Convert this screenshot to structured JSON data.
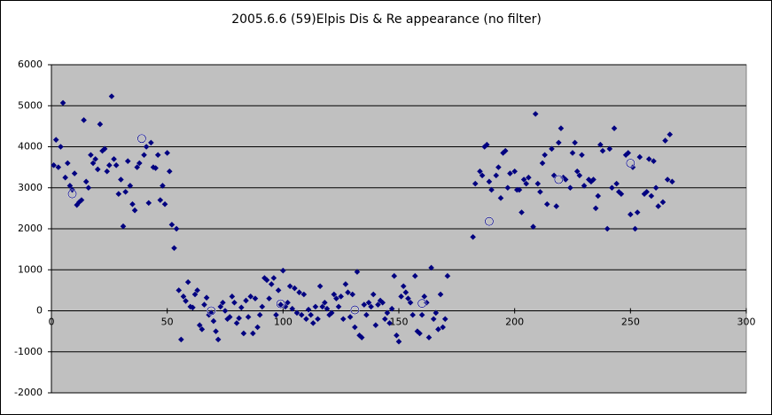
{
  "chart_data": {
    "type": "scatter",
    "title": "2005.6.6 (59)Elpis Dis & Re appearance (no filter)",
    "xlim": [
      0,
      300
    ],
    "xticks": [
      0,
      50,
      100,
      150,
      200,
      250,
      300
    ],
    "ylim": [
      -2000,
      6000
    ],
    "yticks": [
      -2000,
      -1000,
      0,
      1000,
      2000,
      3000,
      4000,
      5000,
      6000
    ],
    "grid": true,
    "series": [
      {
        "marker": "diamond",
        "color": "#000080",
        "x": [
          1,
          2,
          3,
          4,
          5,
          6,
          7,
          8,
          9,
          10,
          11,
          12,
          13,
          14,
          15,
          16,
          17,
          18,
          19,
          20,
          21,
          22,
          23,
          24,
          25,
          26,
          27,
          28,
          29,
          30,
          31,
          32,
          33,
          34,
          35,
          36,
          37,
          38,
          40,
          41,
          42,
          43,
          44,
          45,
          46,
          47,
          48,
          49,
          50,
          51,
          52,
          53,
          54,
          55,
          56,
          57,
          58,
          59,
          60,
          61,
          62,
          63,
          64,
          65,
          66,
          67,
          68,
          69,
          70,
          71,
          72,
          73,
          74,
          75,
          76,
          77,
          78,
          79,
          80,
          81,
          82,
          83,
          84,
          85,
          86,
          87,
          88,
          89,
          90,
          91,
          92,
          93,
          94,
          95,
          96,
          97,
          98,
          99,
          100,
          101,
          102,
          103,
          104,
          105,
          106,
          107,
          108,
          109,
          110,
          111,
          112,
          113,
          114,
          115,
          116,
          117,
          118,
          119,
          120,
          121,
          122,
          123,
          124,
          125,
          126,
          127,
          128,
          129,
          130,
          131,
          132,
          133,
          134,
          135,
          136,
          137,
          138,
          139,
          140,
          141,
          142,
          143,
          144,
          145,
          146,
          147,
          148,
          149,
          150,
          151,
          152,
          153,
          154,
          155,
          156,
          157,
          158,
          159,
          160,
          161,
          162,
          163,
          164,
          165,
          166,
          167,
          168,
          169,
          170,
          171,
          182,
          183,
          185,
          186,
          187,
          188,
          189,
          190,
          192,
          193,
          194,
          195,
          196,
          197,
          198,
          200,
          201,
          202,
          203,
          204,
          205,
          206,
          208,
          209,
          210,
          211,
          212,
          213,
          214,
          216,
          217,
          218,
          219,
          220,
          221,
          222,
          224,
          225,
          226,
          227,
          228,
          229,
          230,
          232,
          233,
          234,
          235,
          236,
          237,
          238,
          240,
          241,
          242,
          243,
          244,
          245,
          246,
          248,
          249,
          250,
          251,
          252,
          253,
          254,
          256,
          257,
          258,
          259,
          260,
          261,
          262,
          264,
          265,
          266,
          267,
          268
        ],
        "values": [
          3550,
          4170,
          3500,
          4000,
          5070,
          3250,
          3600,
          3050,
          2950,
          3350,
          2580,
          2650,
          2700,
          4650,
          3150,
          3000,
          3800,
          3600,
          3700,
          3450,
          4550,
          3900,
          3950,
          3400,
          3550,
          5230,
          3700,
          3550,
          2850,
          3200,
          2060,
          2900,
          3650,
          3050,
          2600,
          2450,
          3500,
          3600,
          3800,
          4000,
          2630,
          4100,
          3500,
          3480,
          3800,
          2700,
          3050,
          2600,
          3850,
          3400,
          2100,
          1530,
          2000,
          500,
          -700,
          350,
          240,
          700,
          100,
          80,
          400,
          500,
          -350,
          -450,
          150,
          320,
          -100,
          -50,
          -250,
          -500,
          -700,
          100,
          200,
          0,
          -200,
          -150,
          350,
          200,
          -300,
          -180,
          80,
          -550,
          250,
          -150,
          350,
          -550,
          300,
          -400,
          -100,
          100,
          800,
          750,
          300,
          650,
          800,
          -100,
          500,
          150,
          980,
          100,
          200,
          600,
          50,
          550,
          -50,
          450,
          -100,
          400,
          -200,
          30,
          -100,
          -300,
          100,
          -200,
          600,
          100,
          200,
          50,
          -100,
          -50,
          400,
          300,
          100,
          350,
          -200,
          650,
          450,
          -150,
          400,
          -400,
          950,
          -600,
          -650,
          150,
          -100,
          200,
          100,
          400,
          -350,
          150,
          250,
          200,
          -200,
          -50,
          -300,
          50,
          850,
          -600,
          -750,
          350,
          600,
          450,
          300,
          200,
          -100,
          850,
          -500,
          -550,
          -100,
          350,
          200,
          -650,
          1050,
          -200,
          -50,
          -450,
          400,
          -400,
          -200,
          850,
          1800,
          3100,
          3400,
          3300,
          4000,
          4050,
          3150,
          2950,
          3300,
          3500,
          2750,
          3850,
          3900,
          3000,
          3350,
          3400,
          2950,
          2950,
          2400,
          3200,
          3100,
          3250,
          2050,
          4800,
          3100,
          2900,
          3600,
          3800,
          2600,
          3950,
          3300,
          2550,
          4100,
          4450,
          3250,
          3200,
          3000,
          3850,
          4100,
          3400,
          3300,
          3800,
          3050,
          3200,
          3150,
          3200,
          2500,
          2800,
          4050,
          3900,
          2000,
          3950,
          3000,
          4450,
          3100,
          2900,
          2850,
          3800,
          3850,
          2350,
          3500,
          2000,
          2400,
          3750,
          2850,
          2900,
          3700,
          2800,
          3650,
          3000,
          2550,
          2650,
          4150,
          3200,
          4300,
          3150
        ]
      },
      {
        "marker": "circle",
        "color": "#000080",
        "x": [
          9,
          39,
          69,
          99,
          131,
          160,
          189,
          219,
          250
        ],
        "values": [
          2850,
          4200,
          0,
          170,
          20,
          180,
          2180,
          3200,
          3600
        ]
      }
    ]
  }
}
